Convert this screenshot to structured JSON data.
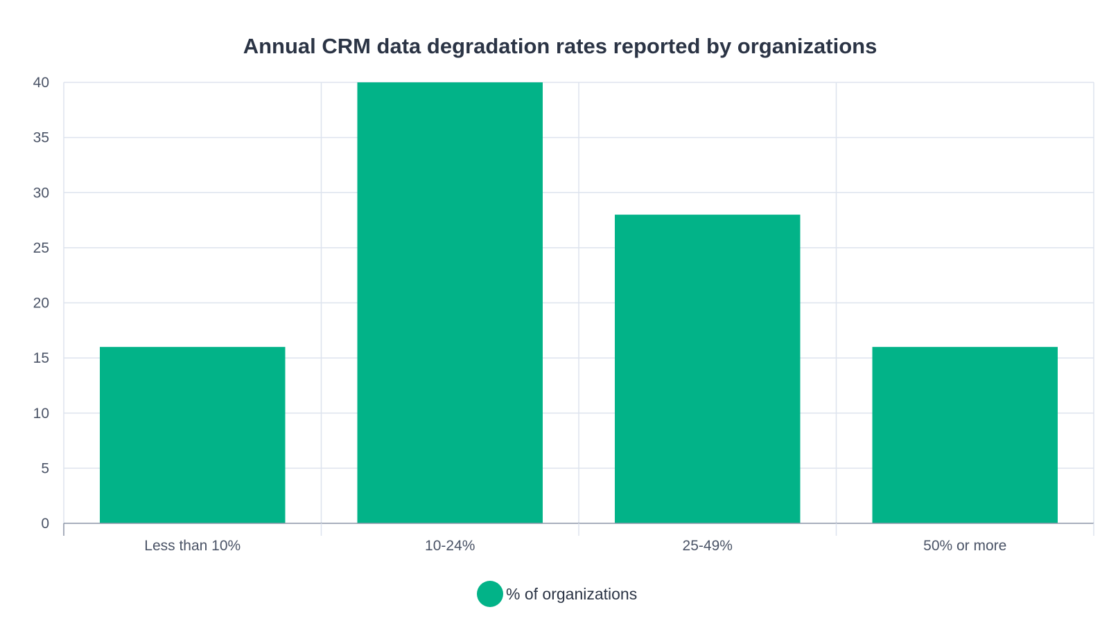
{
  "chart_data": {
    "type": "bar",
    "title": "Annual CRM data degradation rates reported by organizations",
    "categories": [
      "Less than 10%",
      "10-24%",
      "25-49%",
      "50% or more"
    ],
    "series": [
      {
        "name": "% of organizations",
        "values": [
          16,
          40,
          28,
          16
        ],
        "color": "#02b388"
      }
    ],
    "ylim": [
      0,
      40
    ],
    "yticks": [
      0,
      5,
      10,
      15,
      20,
      25,
      30,
      35,
      40
    ],
    "grid": true,
    "legend_position": "bottom-center"
  }
}
